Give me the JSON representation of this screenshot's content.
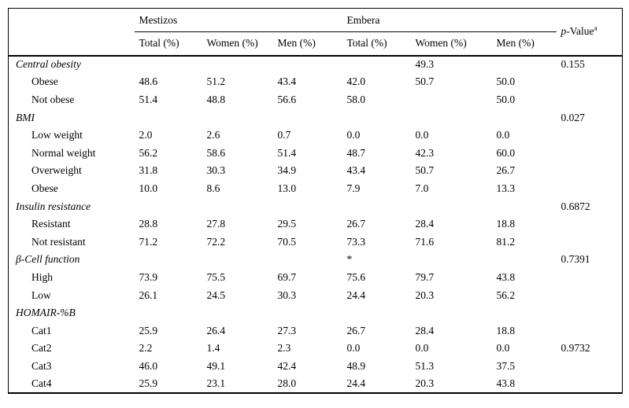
{
  "table": {
    "groups": [
      {
        "label": "Mestizos"
      },
      {
        "label": "Embera"
      }
    ],
    "p_header": {
      "italic": "p",
      "rest": "-Value",
      "sup": "a"
    },
    "sub_headers": [
      "Total (%)",
      "Women (%)",
      "Men (%)",
      "Total (%)",
      "Women (%)",
      "Men (%)"
    ],
    "rows": [
      {
        "label": "Central obesity",
        "type": "section",
        "values": [
          "",
          "",
          "",
          "",
          "49.3",
          ""
        ],
        "p": "0.155"
      },
      {
        "label": "Obese",
        "type": "item",
        "values": [
          "48.6",
          "51.2",
          "43.4",
          "42.0",
          "50.7",
          "50.0"
        ],
        "p": ""
      },
      {
        "label": "Not obese",
        "type": "item",
        "values": [
          "51.4",
          "48.8",
          "56.6",
          "58.0",
          "",
          "50.0"
        ],
        "p": ""
      },
      {
        "label": "BMI",
        "type": "section",
        "values": [
          "",
          "",
          "",
          "",
          "",
          ""
        ],
        "p": "0.027"
      },
      {
        "label": "Low weight",
        "type": "item",
        "values": [
          "2.0",
          "2.6",
          "0.7",
          "0.0",
          "0.0",
          "0.0"
        ],
        "p": ""
      },
      {
        "label": "Normal weight",
        "type": "item",
        "values": [
          "56.2",
          "58.6",
          "51.4",
          "48.7",
          "42.3",
          "60.0"
        ],
        "p": ""
      },
      {
        "label": "Overweight",
        "type": "item",
        "values": [
          "31.8",
          "30.3",
          "34.9",
          "43.4",
          "50.7",
          "26.7"
        ],
        "p": ""
      },
      {
        "label": "Obese",
        "type": "item",
        "values": [
          "10.0",
          "8.6",
          "13.0",
          "7.9",
          "7.0",
          "13.3"
        ],
        "p": ""
      },
      {
        "label": "Insulin resistance",
        "type": "section",
        "values": [
          "",
          "",
          "",
          "",
          "",
          ""
        ],
        "p": "0.6872"
      },
      {
        "label": "Resistant",
        "type": "item",
        "values": [
          "28.8",
          "27.8",
          "29.5",
          "26.7",
          "28.4",
          "18.8"
        ],
        "p": ""
      },
      {
        "label": "Not resistant",
        "type": "item",
        "values": [
          "71.2",
          "72.2",
          "70.5",
          "73.3",
          "71.6",
          "81.2"
        ],
        "p": ""
      },
      {
        "label": "β-Cell function",
        "type": "section",
        "values": [
          "",
          "",
          "",
          "*",
          "",
          ""
        ],
        "p": "0.7391"
      },
      {
        "label": "High",
        "type": "item",
        "values": [
          "73.9",
          "75.5",
          "69.7",
          "75.6",
          "79.7",
          "43.8"
        ],
        "p": ""
      },
      {
        "label": "Low",
        "type": "item",
        "values": [
          "26.1",
          "24.5",
          "30.3",
          "24.4",
          "20.3",
          "56.2"
        ],
        "p": ""
      },
      {
        "label": "HOMAIR-%B",
        "type": "section",
        "values": [
          "",
          "",
          "",
          "",
          "",
          ""
        ],
        "p": ""
      },
      {
        "label": "Cat1",
        "type": "item",
        "values": [
          "25.9",
          "26.4",
          "27.3",
          "26.7",
          "28.4",
          "18.8"
        ],
        "p": ""
      },
      {
        "label": "Cat2",
        "type": "item",
        "values": [
          "2.2",
          "1.4",
          "2.3",
          "0.0",
          "0.0",
          "0.0"
        ],
        "p": "0.9732"
      },
      {
        "label": "Cat3",
        "type": "item",
        "values": [
          "46.0",
          "49.1",
          "42.4",
          "48.9",
          "51.3",
          "37.5"
        ],
        "p": ""
      },
      {
        "label": "Cat4",
        "type": "item",
        "values": [
          "25.9",
          "23.1",
          "28.0",
          "24.4",
          "20.3",
          "43.8"
        ],
        "p": ""
      }
    ]
  }
}
